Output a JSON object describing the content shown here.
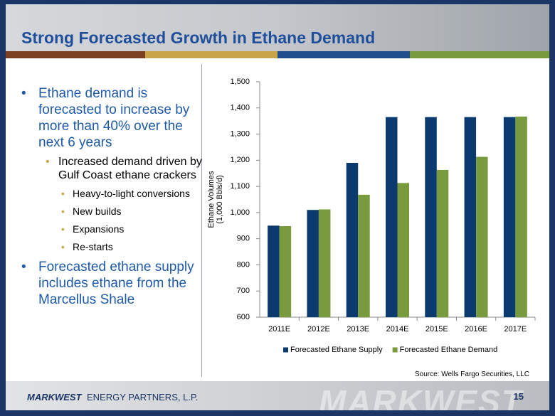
{
  "title": "Strong Forecasted Growth in Ethane Demand",
  "bullets": [
    {
      "text": "Ethane demand is forecasted to increase by more than 40% over the next 6 years",
      "level": 0
    },
    {
      "text": "Increased demand driven by Gulf Coast ethane crackers",
      "level": 1
    },
    {
      "text": "Heavy-to-light conversions",
      "level": 2
    },
    {
      "text": "New builds",
      "level": 2
    },
    {
      "text": "Expansions",
      "level": 2
    },
    {
      "text": "Re-starts",
      "level": 2
    },
    {
      "text": "Forecasted ethane supply includes ethane from the Marcellus Shale",
      "level": 0
    }
  ],
  "source": "Source: Wells Fargo Securities, LLC",
  "footer": {
    "brand": "MARKWEST",
    "company": "ENERGY PARTNERS, L.P.",
    "page": "15"
  },
  "chart_data": {
    "type": "bar",
    "ylabel_lines": [
      "Ethane Volumes",
      "(1,000 Bbls/d)"
    ],
    "categories": [
      "2011E",
      "2012E",
      "2013E",
      "2014E",
      "2015E",
      "2016E",
      "2017E"
    ],
    "series": [
      {
        "name": "Forecasted Ethane Supply",
        "color": "#0b3a6e",
        "values": [
          950,
          1010,
          1190,
          1365,
          1365,
          1365,
          1365
        ]
      },
      {
        "name": "Forecasted Ethane Demand",
        "color": "#7a9a3e",
        "values": [
          948,
          1012,
          1068,
          1113,
          1163,
          1213,
          1367
        ]
      }
    ],
    "ylim": [
      600,
      1500
    ],
    "yticks": [
      600,
      700,
      800,
      900,
      {
        "value": 1000,
        "label": "1,000"
      },
      {
        "value": 1100,
        "label": "1,100"
      },
      {
        "value": 1200,
        "label": "1,200"
      },
      {
        "value": 1300,
        "label": "1,300"
      },
      {
        "value": 1400,
        "label": "1,400"
      },
      {
        "value": 1500,
        "label": "1,500"
      }
    ],
    "grid": false,
    "legend": "bottom"
  }
}
